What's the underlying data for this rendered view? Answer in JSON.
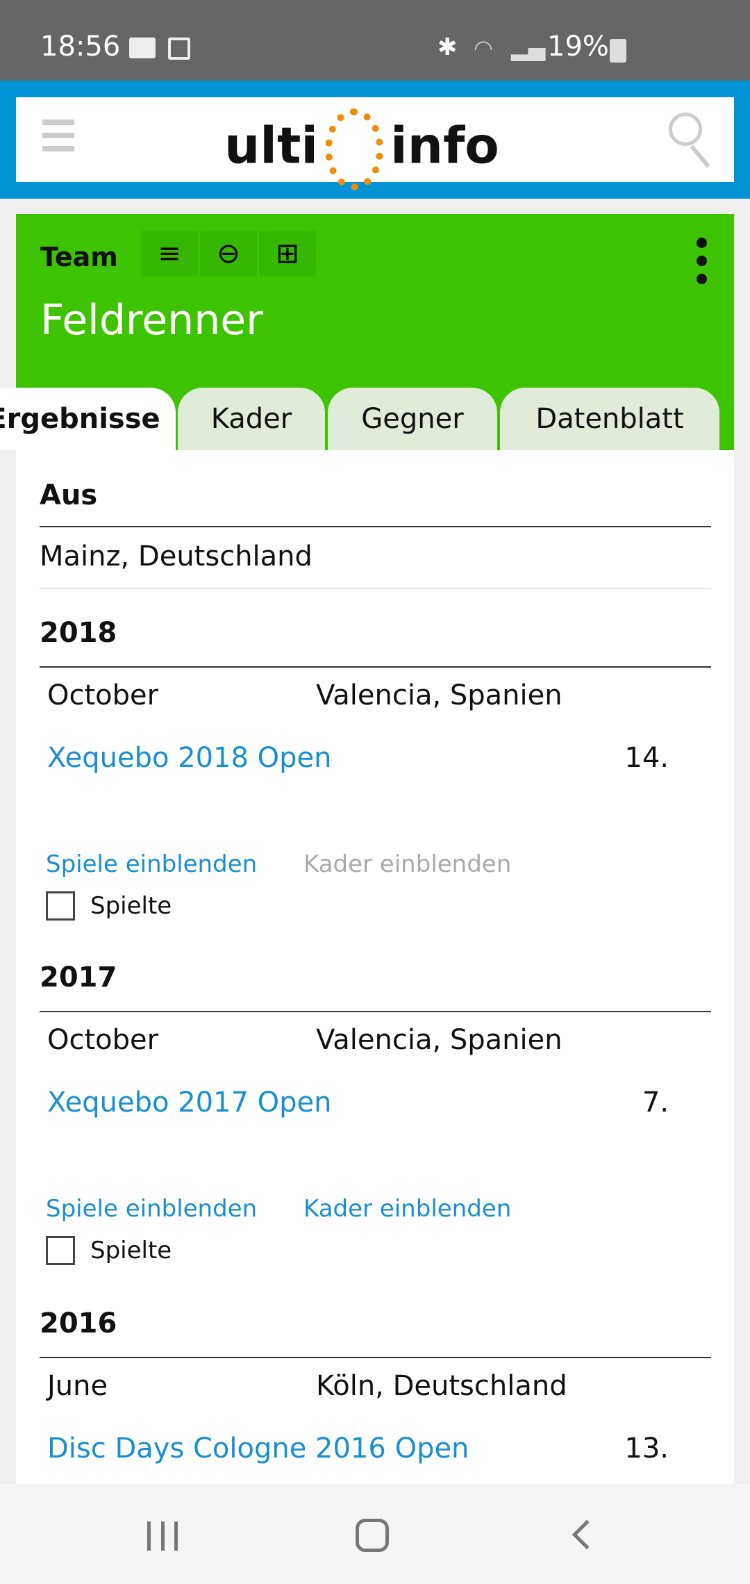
{
  "status": {
    "time": "18:56",
    "battery": "19%",
    "icons": [
      "mail-icon",
      "image-icon",
      "bluetooth-icon",
      "wifi-icon",
      "signal-icon",
      "battery-icon"
    ]
  },
  "header": {
    "logo_left": "ulti",
    "logo_right": "info",
    "menu_icon": "hamburger-icon",
    "search_icon": "search-icon"
  },
  "team": {
    "label": "Team",
    "name": "Feldrenner",
    "tools": [
      "list-icon",
      "strikethrough-icon",
      "plus-square-icon"
    ],
    "accent": "#3ec300"
  },
  "tabs": [
    {
      "label": "Ergebnisse",
      "active": true
    },
    {
      "label": "Kader"
    },
    {
      "label": "Gegner"
    },
    {
      "label": "Datenblatt"
    }
  ],
  "origin": {
    "heading": "Aus",
    "value": "Mainz, Deutschland"
  },
  "seasons": [
    {
      "year": "2018",
      "month": "October",
      "location": "Valencia, Spanien",
      "event": "Xequebo 2018 Open",
      "rank": "14.",
      "games_link": "Spiele einblenden",
      "roster_link": "Kader einblenden",
      "roster_enabled": false,
      "checkbox_label": "Spielte"
    },
    {
      "year": "2017",
      "month": "October",
      "location": "Valencia, Spanien",
      "event": "Xequebo 2017 Open",
      "rank": "7.",
      "games_link": "Spiele einblenden",
      "roster_link": "Kader einblenden",
      "roster_enabled": true,
      "checkbox_label": "Spielte"
    },
    {
      "year": "2016",
      "month": "June",
      "location": "Köln, Deutschland",
      "event": "Disc Days Cologne 2016 Open",
      "rank": "13."
    }
  ]
}
